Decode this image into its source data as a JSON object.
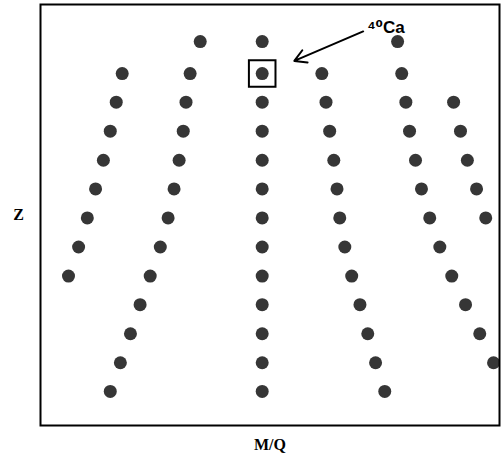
{
  "chart_data": {
    "type": "scatter",
    "x_label": "M/Q",
    "y_label": "Z",
    "xlim": [
      0,
      100
    ],
    "ylim": [
      0,
      100
    ],
    "tick_labels": false,
    "color": "#1a1a1a",
    "x": [
      48.3,
      48.3,
      48.3,
      48.3,
      48.3,
      48.3,
      48.3,
      48.3,
      48.3,
      48.3,
      48.3,
      48.3,
      48.3,
      61.3,
      62.2,
      63.0,
      63.9,
      64.6,
      65.2,
      66.3,
      67.8,
      69.6,
      71.3,
      73.0,
      75.0,
      77.8,
      78.7,
      79.6,
      80.4,
      81.7,
      83.0,
      84.8,
      87.0,
      89.6,
      92.6,
      95.7,
      98.7,
      90.0,
      91.5,
      93.0,
      95.0,
      97.0,
      34.8,
      32.6,
      31.7,
      31.1,
      30.2,
      29.1,
      27.8,
      26.1,
      23.9,
      21.7,
      19.6,
      17.4,
      15.2,
      17.8,
      16.5,
      15.2,
      13.7,
      12.0,
      10.2,
      8.3,
      6.1
    ],
    "values": [
      91.2,
      83.6,
      76.8,
      69.9,
      63.0,
      56.2,
      49.3,
      42.4,
      35.5,
      28.7,
      21.8,
      14.9,
      8.1,
      83.6,
      76.8,
      69.9,
      63.0,
      56.2,
      49.3,
      42.4,
      35.5,
      28.7,
      21.8,
      14.9,
      8.1,
      91.2,
      83.6,
      76.8,
      69.9,
      63.0,
      56.2,
      49.3,
      42.4,
      35.5,
      28.7,
      21.8,
      14.9,
      76.8,
      69.9,
      63.0,
      56.2,
      49.3,
      91.2,
      83.6,
      76.8,
      69.9,
      63.0,
      56.2,
      49.3,
      42.4,
      35.5,
      28.7,
      21.8,
      14.9,
      8.1,
      83.6,
      76.8,
      69.9,
      63.0,
      56.2,
      49.3,
      42.4,
      35.5
    ],
    "annotations": [
      {
        "text": "⁴⁰Ca",
        "x": 48.3,
        "y": 83.6
      }
    ]
  }
}
